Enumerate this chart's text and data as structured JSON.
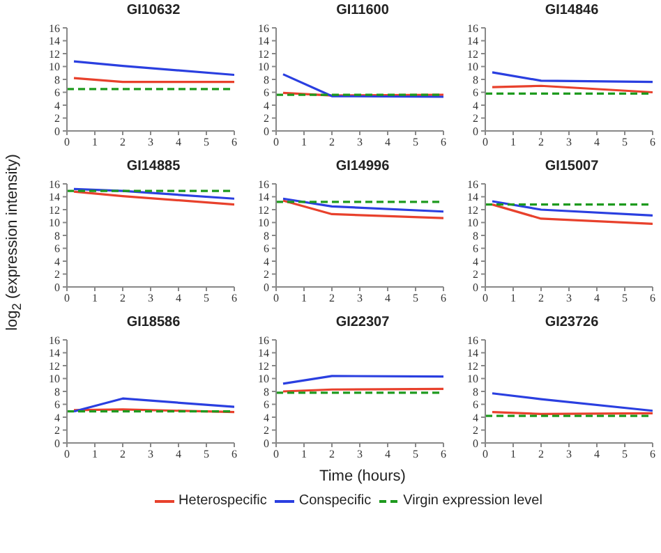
{
  "chart_data": [
    {
      "type": "line",
      "title": "GI10632",
      "xlim": [
        0,
        6
      ],
      "xticks": [
        0,
        1,
        2,
        3,
        4,
        5,
        6
      ],
      "ylim": [
        0,
        16
      ],
      "yticks": [
        0,
        2,
        4,
        6,
        8,
        10,
        12,
        14,
        16
      ],
      "series": [
        {
          "color": "#e8412c",
          "x": [
            0.25,
            2,
            6
          ],
          "values": [
            8.2,
            7.6,
            7.6
          ]
        },
        {
          "color": "#2a3fe0",
          "x": [
            0.25,
            2,
            6
          ],
          "values": [
            10.8,
            10.1,
            8.7
          ]
        },
        {
          "color": "#1e9a1e",
          "x": [
            0,
            6
          ],
          "values": [
            6.5,
            6.5
          ],
          "line_style": "dashed"
        }
      ]
    },
    {
      "type": "line",
      "title": "GI11600",
      "xlim": [
        0,
        6
      ],
      "xticks": [
        0,
        1,
        2,
        3,
        4,
        5,
        6
      ],
      "ylim": [
        0,
        16
      ],
      "yticks": [
        0,
        2,
        4,
        6,
        8,
        10,
        12,
        14,
        16
      ],
      "series": [
        {
          "color": "#e8412c",
          "x": [
            0.25,
            2,
            6
          ],
          "values": [
            5.9,
            5.5,
            5.6
          ]
        },
        {
          "color": "#2a3fe0",
          "x": [
            0.25,
            2,
            6
          ],
          "values": [
            8.8,
            5.4,
            5.3
          ]
        },
        {
          "color": "#1e9a1e",
          "x": [
            0,
            6
          ],
          "values": [
            5.6,
            5.6
          ],
          "line_style": "dashed"
        }
      ]
    },
    {
      "type": "line",
      "title": "GI14846",
      "xlim": [
        0,
        6
      ],
      "xticks": [
        0,
        1,
        2,
        3,
        4,
        5,
        6
      ],
      "ylim": [
        0,
        16
      ],
      "yticks": [
        0,
        2,
        4,
        6,
        8,
        10,
        12,
        14,
        16
      ],
      "series": [
        {
          "color": "#e8412c",
          "x": [
            0.25,
            2,
            6
          ],
          "values": [
            6.8,
            7.0,
            6.0
          ]
        },
        {
          "color": "#2a3fe0",
          "x": [
            0.25,
            2,
            6
          ],
          "values": [
            9.1,
            7.8,
            7.6
          ]
        },
        {
          "color": "#1e9a1e",
          "x": [
            0,
            6
          ],
          "values": [
            5.8,
            5.8
          ],
          "line_style": "dashed"
        }
      ]
    },
    {
      "type": "line",
      "title": "GI14885",
      "ylabel": "log$_{2}$ (expression intensity)",
      "xlim": [
        0,
        6
      ],
      "xticks": [
        0,
        1,
        2,
        3,
        4,
        5,
        6
      ],
      "ylim": [
        0,
        16
      ],
      "yticks": [
        0,
        2,
        4,
        6,
        8,
        10,
        12,
        14,
        16
      ],
      "series": [
        {
          "color": "#e8412c",
          "x": [
            0.25,
            2,
            6
          ],
          "values": [
            14.8,
            14.1,
            12.8
          ]
        },
        {
          "color": "#2a3fe0",
          "x": [
            0.25,
            2,
            6
          ],
          "values": [
            15.2,
            14.9,
            13.7
          ]
        },
        {
          "color": "#1e9a1e",
          "x": [
            0,
            6
          ],
          "values": [
            14.9,
            14.9
          ],
          "line_style": "dashed"
        }
      ]
    },
    {
      "type": "line",
      "title": "GI14996",
      "xlim": [
        0,
        6
      ],
      "xticks": [
        0,
        1,
        2,
        3,
        4,
        5,
        6
      ],
      "ylim": [
        0,
        16
      ],
      "yticks": [
        0,
        2,
        4,
        6,
        8,
        10,
        12,
        14,
        16
      ],
      "series": [
        {
          "color": "#e8412c",
          "x": [
            0.25,
            2,
            6
          ],
          "values": [
            13.4,
            11.3,
            10.7
          ]
        },
        {
          "color": "#2a3fe0",
          "x": [
            0.25,
            2,
            6
          ],
          "values": [
            13.7,
            12.5,
            11.7
          ]
        },
        {
          "color": "#1e9a1e",
          "x": [
            0,
            6
          ],
          "values": [
            13.2,
            13.2
          ],
          "line_style": "dashed"
        }
      ]
    },
    {
      "type": "line",
      "title": "GI15007",
      "xlim": [
        0,
        6
      ],
      "xticks": [
        0,
        1,
        2,
        3,
        4,
        5,
        6
      ],
      "ylim": [
        0,
        16
      ],
      "yticks": [
        0,
        2,
        4,
        6,
        8,
        10,
        12,
        14,
        16
      ],
      "series": [
        {
          "color": "#e8412c",
          "x": [
            0.25,
            2,
            6
          ],
          "values": [
            12.8,
            10.6,
            9.8
          ]
        },
        {
          "color": "#2a3fe0",
          "x": [
            0.25,
            2,
            6
          ],
          "values": [
            13.3,
            12.0,
            11.1
          ]
        },
        {
          "color": "#1e9a1e",
          "x": [
            0,
            6
          ],
          "values": [
            12.8,
            12.8
          ],
          "line_style": "dashed"
        }
      ]
    },
    {
      "type": "line",
      "title": "GI18586",
      "xlim": [
        0,
        6
      ],
      "xticks": [
        0,
        1,
        2,
        3,
        4,
        5,
        6
      ],
      "ylim": [
        0,
        16
      ],
      "yticks": [
        0,
        2,
        4,
        6,
        8,
        10,
        12,
        14,
        16
      ],
      "series": [
        {
          "color": "#e8412c",
          "x": [
            0.25,
            2,
            6
          ],
          "values": [
            5.1,
            5.2,
            4.8
          ]
        },
        {
          "color": "#2a3fe0",
          "x": [
            0.25,
            2,
            6
          ],
          "values": [
            4.9,
            6.9,
            5.6
          ]
        },
        {
          "color": "#1e9a1e",
          "x": [
            0,
            6
          ],
          "values": [
            4.9,
            4.9
          ],
          "line_style": "dashed"
        }
      ]
    },
    {
      "type": "line",
      "title": "GI22307",
      "xlabel": "Time (hours)",
      "legend": "bottom",
      "xlim": [
        0,
        6
      ],
      "xticks": [
        0,
        1,
        2,
        3,
        4,
        5,
        6
      ],
      "ylim": [
        0,
        16
      ],
      "yticks": [
        0,
        2,
        4,
        6,
        8,
        10,
        12,
        14,
        16
      ],
      "series": [
        {
          "name": "Heterospecific",
          "color": "#e8412c",
          "x": [
            0.25,
            2,
            6
          ],
          "values": [
            8.0,
            8.3,
            8.4
          ]
        },
        {
          "name": "Conspecific",
          "color": "#2a3fe0",
          "x": [
            0.25,
            2,
            6
          ],
          "values": [
            9.2,
            10.4,
            10.3
          ]
        },
        {
          "name": "Virgin expression level",
          "color": "#1e9a1e",
          "x": [
            0,
            6
          ],
          "values": [
            7.8,
            7.8
          ],
          "line_style": "dashed"
        }
      ]
    },
    {
      "type": "line",
      "title": "GI23726",
      "xlim": [
        0,
        6
      ],
      "xticks": [
        0,
        1,
        2,
        3,
        4,
        5,
        6
      ],
      "ylim": [
        0,
        16
      ],
      "yticks": [
        0,
        2,
        4,
        6,
        8,
        10,
        12,
        14,
        16
      ],
      "series": [
        {
          "color": "#e8412c",
          "x": [
            0.25,
            2,
            6
          ],
          "values": [
            4.8,
            4.5,
            4.6
          ]
        },
        {
          "color": "#2a3fe0",
          "x": [
            0.25,
            2,
            6
          ],
          "values": [
            7.7,
            6.8,
            5.0
          ]
        },
        {
          "color": "#1e9a1e",
          "x": [
            0,
            6
          ],
          "values": [
            4.2,
            4.2
          ],
          "line_style": "dashed"
        }
      ]
    }
  ]
}
